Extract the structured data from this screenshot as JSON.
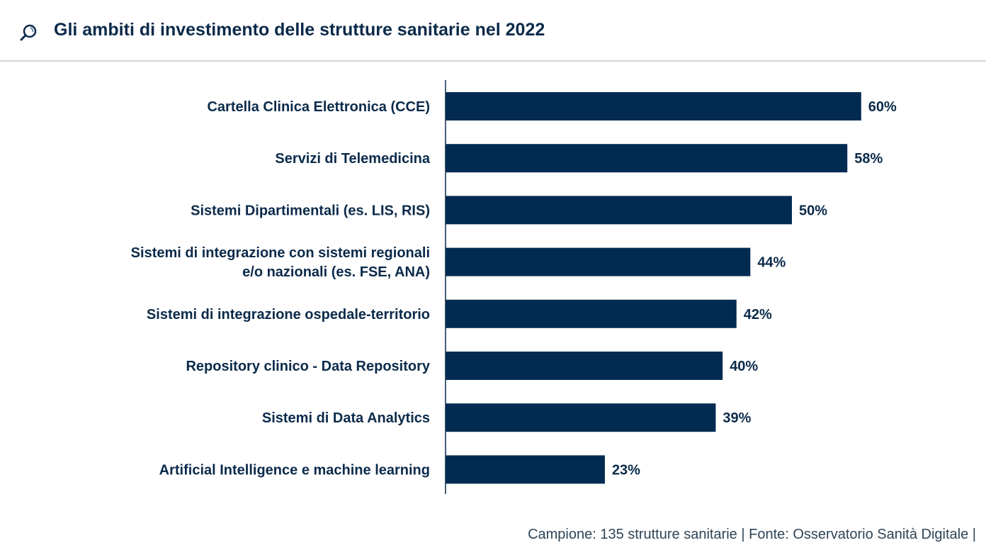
{
  "header": {
    "title": "Gli ambiti di investimento delle strutture sanitarie nel 2022",
    "icon": "magnifier-icon"
  },
  "footer": {
    "text": "Campione: 135 strutture sanitarie | Fonte: Osservatorio Sanità Digitale |"
  },
  "colors": {
    "bar": "#022b52",
    "text": "#0b2a4a"
  },
  "chart_data": {
    "type": "bar",
    "orientation": "horizontal",
    "title": "Gli ambiti di investimento delle strutture sanitarie nel 2022",
    "xlabel": "",
    "ylabel": "",
    "xlim": [
      0,
      60
    ],
    "grid": false,
    "categories": [
      "Cartella Clinica Elettronica (CCE)",
      "Servizi di Telemedicina",
      "Sistemi Dipartimentali (es. LIS, RIS)",
      "Sistemi di integrazione con sistemi regionali\ne/o nazionali (es. FSE, ANA)",
      "Sistemi di integrazione ospedale-territorio",
      "Repository clinico - Data Repository",
      "Sistemi di Data Analytics",
      "Artificial Intelligence e machine learning"
    ],
    "values": [
      60,
      58,
      50,
      44,
      42,
      40,
      39,
      23
    ],
    "data_labels": [
      "60%",
      "58%",
      "50%",
      "44%",
      "42%",
      "40%",
      "39%",
      "23%"
    ]
  }
}
